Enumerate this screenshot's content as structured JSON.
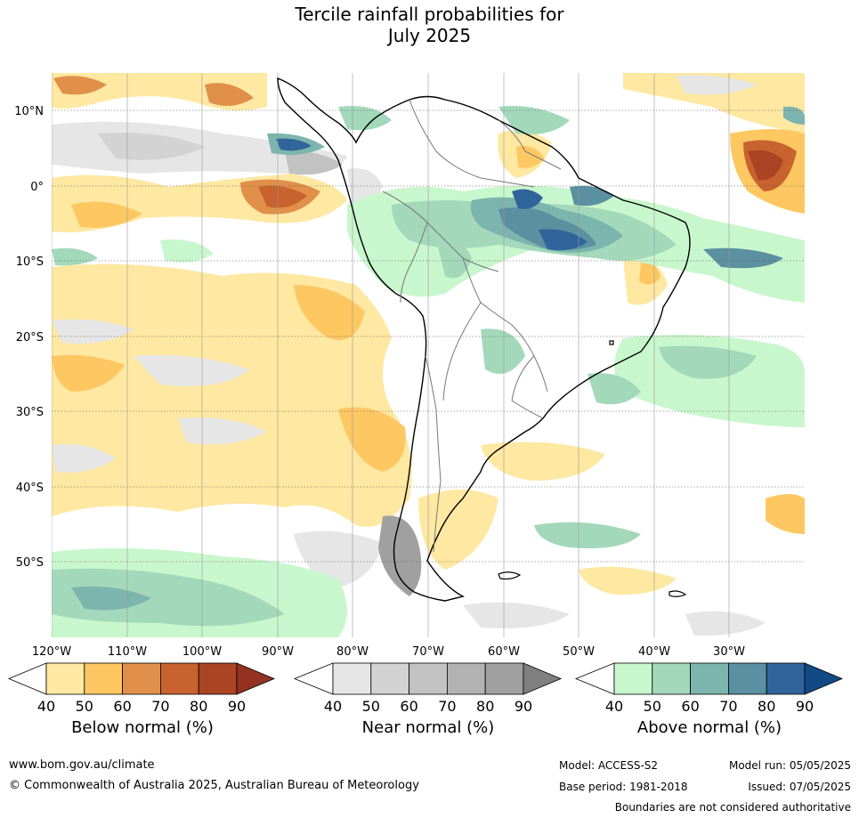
{
  "title": {
    "line1": "Tercile rainfall probabilities for",
    "line2": "July 2025"
  },
  "map": {
    "lat_labels": [
      "10°N",
      "0°",
      "10°S",
      "20°S",
      "30°S",
      "40°S",
      "50°S"
    ],
    "lon_labels": [
      "120°W",
      "110°W",
      "100°W",
      "90°W",
      "80°W",
      "70°W",
      "60°W",
      "50°W",
      "40°W",
      "30°W"
    ]
  },
  "colorbars": [
    {
      "title": "Below normal (%)",
      "ticks": [
        "40",
        "50",
        "60",
        "70",
        "80",
        "90"
      ],
      "colors": [
        "#ffffff",
        "#fee8a2",
        "#fdc862",
        "#e0904a",
        "#c8622e",
        "#ab4424",
        "#933220"
      ]
    },
    {
      "title": "Near normal (%)",
      "ticks": [
        "40",
        "50",
        "60",
        "70",
        "80",
        "90"
      ],
      "colors": [
        "#ffffff",
        "#e6e6e6",
        "#d3d3d3",
        "#c2c2c2",
        "#b2b2b2",
        "#a0a0a0",
        "#808080"
      ]
    },
    {
      "title": "Above normal (%)",
      "ticks": [
        "40",
        "50",
        "60",
        "70",
        "80",
        "90"
      ],
      "colors": [
        "#ffffff",
        "#c9f7cd",
        "#a3d8bb",
        "#7cb5ad",
        "#5a909f",
        "#30649a",
        "#124a85"
      ]
    }
  ],
  "footer": {
    "website": "www.bom.gov.au/climate",
    "copyright": "© Commonwealth of Australia 2025, Australian Bureau of Meteorology",
    "model": "Model: ACCESS-S2",
    "model_run": "Model run: 05/05/2025",
    "base_period": "Base period: 1981-2018",
    "issued": "Issued: 07/05/2025",
    "disclaimer": "Boundaries are not considered authoritative"
  }
}
